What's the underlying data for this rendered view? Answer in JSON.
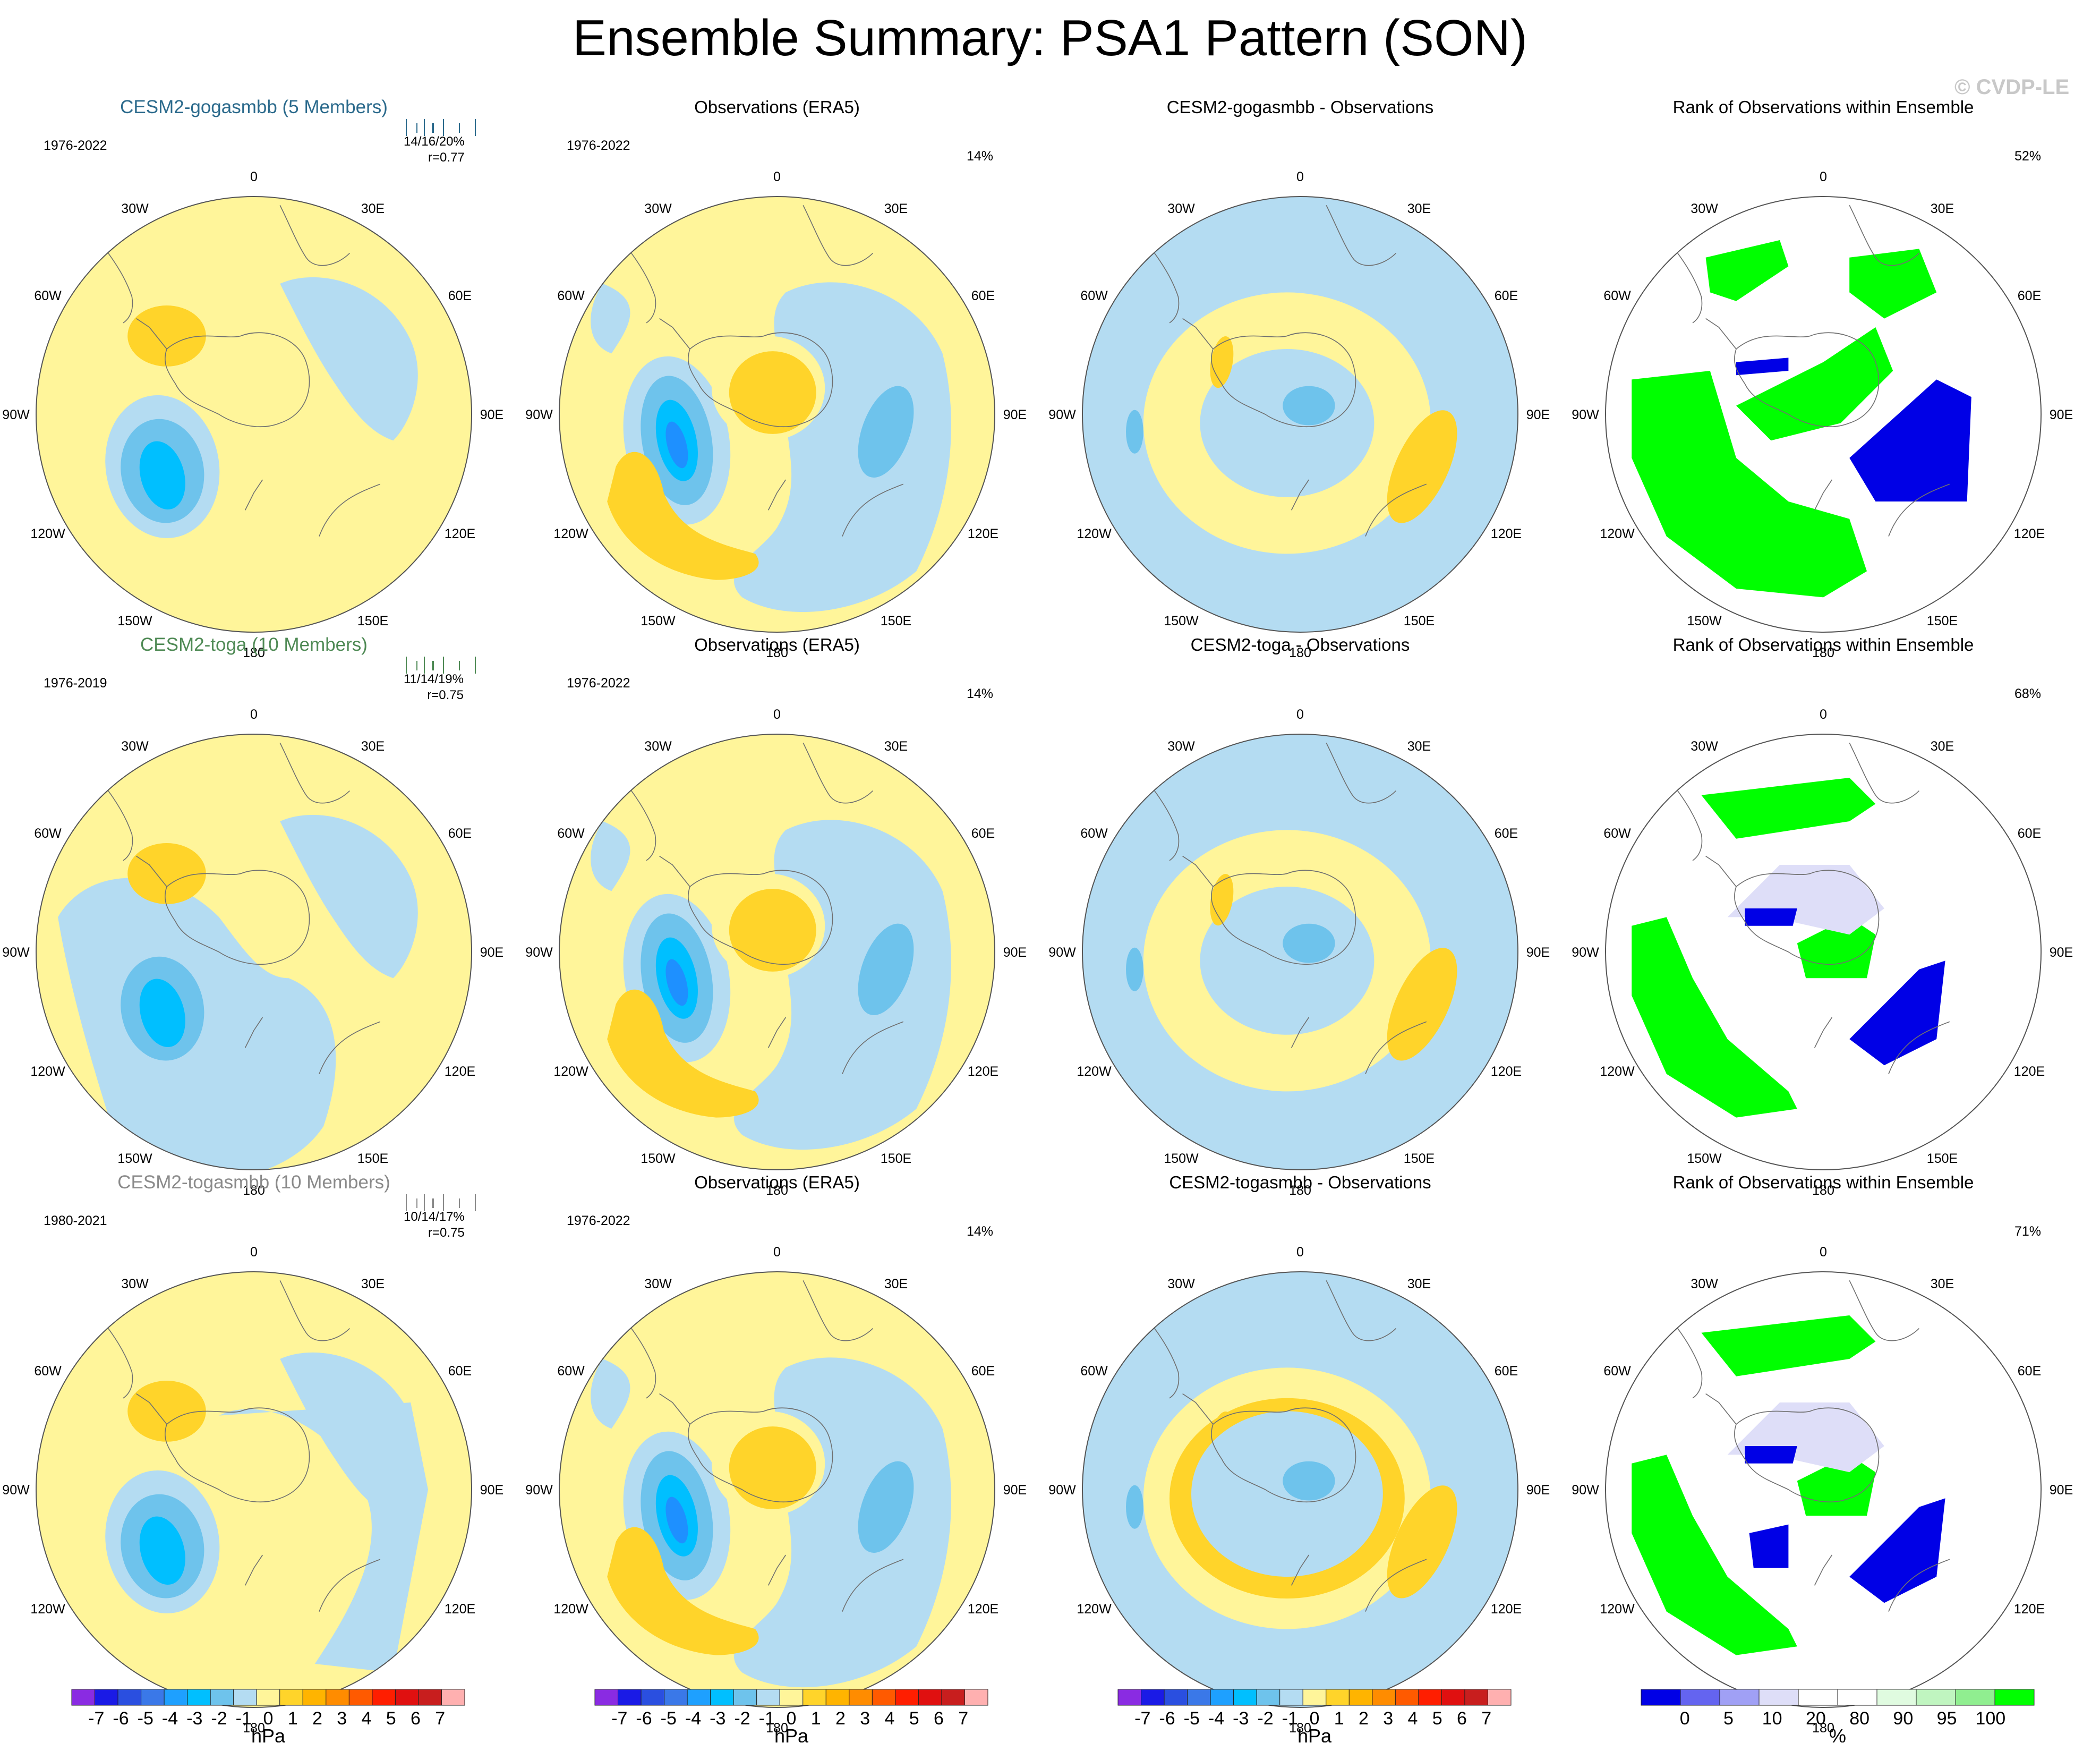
{
  "title": "Ensemble Summary: PSA1 Pattern (SON)",
  "watermark": "© CVDP-LE",
  "colors": {
    "neg1": "#b4dcf2",
    "neg2": "#6ec3ec",
    "neg3": "#00bfff",
    "neg4": "#1e90ff",
    "pos1": "#fff59a",
    "pos2": "#ffd42a",
    "pos3": "#ffb400",
    "rank_blue": "#0000e6",
    "rank_green": "#00ff00",
    "rank_lightblue": "#dedef8",
    "rank_lightgreen": "#e0fbe0"
  },
  "lon_labels": [
    "0",
    "30E",
    "60E",
    "90E",
    "120E",
    "150E",
    "180",
    "150W",
    "120W",
    "90W",
    "60W",
    "30W"
  ],
  "rows": [
    {
      "model": {
        "title": "CESM2-gogasmbb (5 Members)",
        "title_color": "#2b6a8c",
        "period": "1976-2022",
        "stats": "14/16/20%",
        "r": "r=0.77"
      },
      "obs": {
        "title": "Observations (ERA5)",
        "period": "1976-2022",
        "pct": "14%"
      },
      "diff": {
        "title": "CESM2-gogasmbb - Observations"
      },
      "rank": {
        "title": "Rank of Observations within Ensemble",
        "pct": "52%"
      }
    },
    {
      "model": {
        "title": "CESM2-toga (10 Members)",
        "title_color": "#4f8a55",
        "period": "1976-2019",
        "stats": "11/14/19%",
        "r": "r=0.75"
      },
      "obs": {
        "title": "Observations (ERA5)",
        "period": "1976-2022",
        "pct": "14%"
      },
      "diff": {
        "title": "CESM2-toga - Observations"
      },
      "rank": {
        "title": "Rank of Observations within Ensemble",
        "pct": "68%"
      }
    },
    {
      "model": {
        "title": "CESM2-togasmbb (10 Members)",
        "title_color": "#8a8a8a",
        "period": "1980-2021",
        "stats": "10/14/17%",
        "r": "r=0.75"
      },
      "obs": {
        "title": "Observations (ERA5)",
        "period": "1976-2022",
        "pct": "14%"
      },
      "diff": {
        "title": "CESM2-togasmbb - Observations"
      },
      "rank": {
        "title": "Rank of Observations within Ensemble",
        "pct": "71%"
      }
    }
  ],
  "colorbar_hpa": {
    "labels": [
      "-7",
      "-6",
      "-5",
      "-4",
      "-3",
      "-2",
      "-1",
      "0",
      "1",
      "2",
      "3",
      "4",
      "5",
      "6",
      "7"
    ],
    "colors": [
      "#8a2be2",
      "#1a1ae6",
      "#2a4fe0",
      "#3a78e8",
      "#1ea0ff",
      "#00bfff",
      "#6ec3ec",
      "#b4dcf2",
      "#fff59a",
      "#ffd42a",
      "#ffb400",
      "#ff8c00",
      "#ff5a00",
      "#ff1e00",
      "#e01010",
      "#c81e1e",
      "#ffb0b0"
    ],
    "unit": "hPa"
  },
  "colorbar_rank": {
    "labels": [
      "0",
      "5",
      "10",
      "20",
      "80",
      "90",
      "95",
      "100"
    ],
    "colors": [
      "#0000e6",
      "#6464f0",
      "#a0a0f5",
      "#dedef8",
      "#ffffff",
      "#ffffff",
      "#e0fbe0",
      "#c0f5c0",
      "#90ee90",
      "#00ff00"
    ],
    "unit": "%"
  }
}
